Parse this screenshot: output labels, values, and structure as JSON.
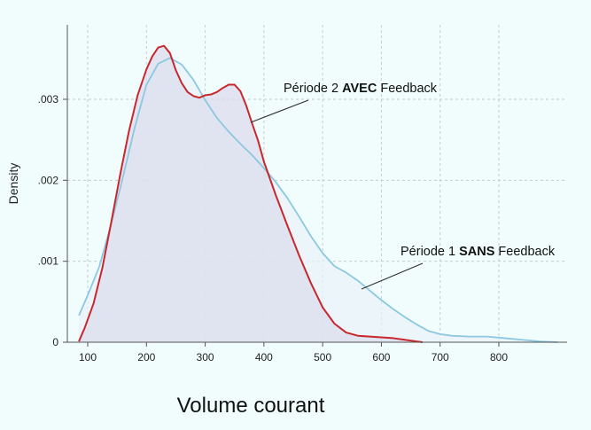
{
  "chart_data": {
    "type": "area",
    "xlabel": "Volume courant",
    "ylabel": "Density",
    "x_ticks": [
      100,
      200,
      300,
      400,
      500,
      600,
      700,
      800
    ],
    "x_tick_labels": [
      "100",
      "200",
      "300",
      "400",
      "500",
      "600",
      "700",
      "800"
    ],
    "y_ticks": [
      0,
      0.001,
      0.002,
      0.003
    ],
    "y_tick_labels": [
      "0",
      ".001",
      ".002",
      ".003"
    ],
    "xlim": [
      75,
      920
    ],
    "ylim": [
      0,
      0.004
    ],
    "grid": true,
    "series": [
      {
        "name_parts": [
          "Période 2 ",
          "AVEC",
          " Feedback"
        ],
        "color": "#c8282d",
        "fill": "#dcdcec",
        "x": [
          85,
          95,
          110,
          125,
          140,
          155,
          170,
          185,
          200,
          210,
          220,
          230,
          240,
          250,
          260,
          270,
          280,
          290,
          300,
          310,
          320,
          330,
          340,
          350,
          360,
          370,
          380,
          390,
          400,
          420,
          440,
          460,
          480,
          500,
          520,
          540,
          560,
          580,
          600,
          620,
          640,
          660,
          670
        ],
        "y": [
          1e-05,
          0.00018,
          0.00048,
          0.00092,
          0.00148,
          0.00206,
          0.0026,
          0.00305,
          0.00337,
          0.00353,
          0.00364,
          0.00366,
          0.00357,
          0.00336,
          0.0032,
          0.00309,
          0.00304,
          0.00302,
          0.00305,
          0.00306,
          0.00309,
          0.00314,
          0.00318,
          0.00318,
          0.0031,
          0.00292,
          0.0027,
          0.00249,
          0.00223,
          0.00182,
          0.00144,
          0.00107,
          0.00073,
          0.00043,
          0.00023,
          0.00012,
          8e-05,
          7e-05,
          6e-05,
          5e-05,
          3e-05,
          1e-05,
          0.0
        ]
      },
      {
        "name_parts": [
          "Période 1 ",
          "SANS",
          " Feedback"
        ],
        "color": "#8cc8e0",
        "fill": "#e8f2f8",
        "x": [
          85,
          100,
          120,
          140,
          160,
          180,
          200,
          220,
          240,
          260,
          280,
          300,
          320,
          340,
          360,
          380,
          400,
          420,
          440,
          460,
          480,
          500,
          520,
          540,
          560,
          580,
          600,
          620,
          640,
          660,
          680,
          700,
          720,
          750,
          780,
          810,
          840,
          870,
          900
        ],
        "y": [
          0.00033,
          0.00058,
          0.00094,
          0.00146,
          0.00204,
          0.00265,
          0.00318,
          0.00344,
          0.00351,
          0.00343,
          0.00324,
          0.00299,
          0.00277,
          0.0026,
          0.00245,
          0.00231,
          0.00215,
          0.00198,
          0.00178,
          0.00155,
          0.00131,
          0.0011,
          0.00094,
          0.00086,
          0.00076,
          0.00064,
          0.00052,
          0.00041,
          0.00031,
          0.00022,
          0.00014,
          0.0001,
          8e-05,
          7e-05,
          7e-05,
          5e-05,
          3e-05,
          1e-05,
          0.0
        ]
      }
    ],
    "annotations": [
      {
        "series": 0,
        "text_parts": [
          "Période 2 ",
          "AVEC",
          " Feedback"
        ],
        "bold_index": 1,
        "position": "upper-middle",
        "pointer_x": 370
      },
      {
        "series": 1,
        "text_parts": [
          "Période 1 ",
          "SANS",
          " Feedback"
        ],
        "bold_index": 1,
        "position": "right",
        "pointer_x": 595
      }
    ]
  }
}
